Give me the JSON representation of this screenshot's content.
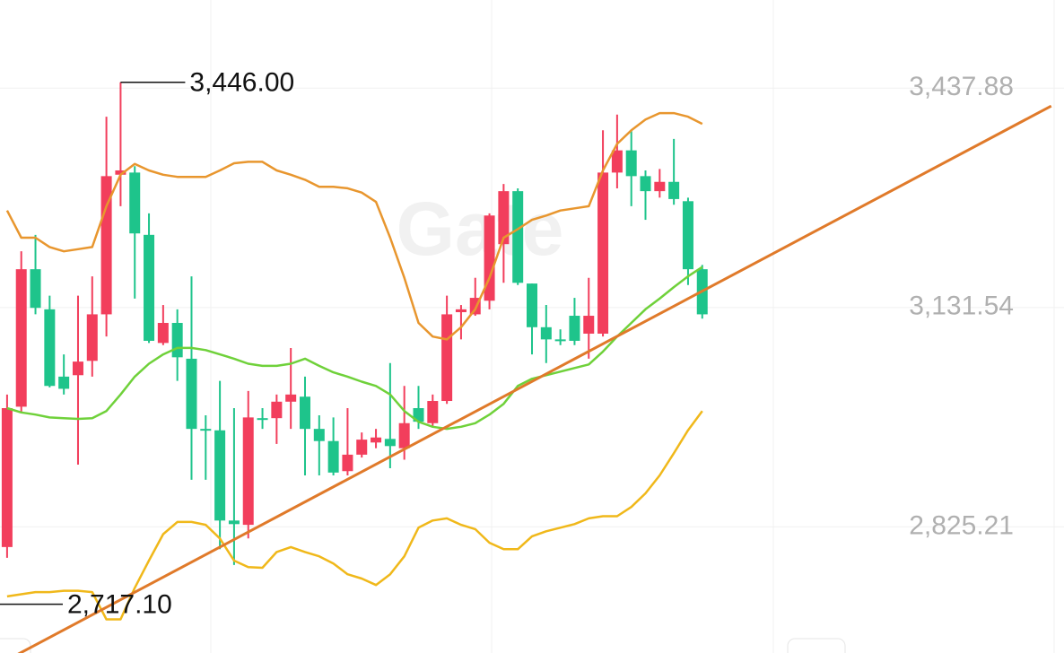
{
  "chart_data": {
    "type": "candlestick",
    "watermark": "Gate",
    "ylim": [
      2649,
      3561
    ],
    "xlim": [
      -0.5,
      74.5
    ],
    "yticks": [
      {
        "value": 3437.88,
        "label": "3,437.88"
      },
      {
        "value": 3131.54,
        "label": "3,131.54"
      },
      {
        "value": 2825.21,
        "label": "2,825.21"
      }
    ],
    "grid": true,
    "up_color": "#f23e5c",
    "down_color": "#1ec48b",
    "open": [
      2797,
      2993,
      3185,
      3129,
      3035,
      3037,
      3057,
      3122,
      3317,
      3320,
      3233,
      3082,
      3110,
      3060,
      2962,
      2960,
      2834,
      2828,
      2977,
      2977,
      3000,
      3007,
      2962,
      2945,
      2903,
      2926,
      2943,
      2948,
      2935,
      2991,
      2970,
      3001,
      3125,
      3122,
      3141,
      3220,
      3294,
      3165,
      3104,
      3087,
      3120,
      3095,
      3095,
      3320,
      3351,
      3315,
      3294,
      3307,
      3280,
      3185
    ],
    "high": [
      3010,
      3210,
      3233,
      3148,
      3066,
      3148,
      3175,
      3398,
      3446,
      3329,
      3263,
      3135,
      3129,
      3175,
      2981,
      3029,
      2991,
      3015,
      2991,
      3010,
      3075,
      3035,
      2981,
      2978,
      2991,
      2957,
      2962,
      3054,
      3022,
      3022,
      3010,
      3148,
      3135,
      3173,
      3263,
      3304,
      3298,
      3165,
      3135,
      3101,
      3145,
      3173,
      3379,
      3401,
      3379,
      3323,
      3325,
      3367,
      3285,
      3191
    ],
    "low": [
      2782,
      2985,
      3122,
      3020,
      3010,
      2912,
      3035,
      3091,
      3273,
      3144,
      3082,
      3079,
      3029,
      2891,
      2891,
      2794,
      2772,
      2809,
      2962,
      2941,
      2962,
      2897,
      2897,
      2897,
      2897,
      2922,
      2935,
      2907,
      2919,
      2962,
      2966,
      2997,
      3087,
      3120,
      3129,
      3166,
      3163,
      3066,
      3054,
      3079,
      3079,
      3060,
      3091,
      3298,
      3273,
      3254,
      3285,
      3275,
      3163,
      3116
    ],
    "close": [
      2991,
      3185,
      3131,
      3022,
      3018,
      3056,
      3122,
      3315,
      3323,
      3235,
      3085,
      3110,
      3062,
      2962,
      2960,
      2834,
      2829,
      2978,
      2975,
      3000,
      3010,
      2962,
      2945,
      2901,
      2926,
      2947,
      2950,
      2938,
      2970,
      2972,
      3001,
      3122,
      3129,
      3145,
      3260,
      3294,
      3166,
      3104,
      3087,
      3085,
      3085,
      3120,
      3320,
      3351,
      3315,
      3294,
      3307,
      3283,
      3185,
      3122
    ],
    "lines": [
      {
        "color": "#e8962e",
        "values": [
          3267,
          3229,
          3229,
          3216,
          3210,
          3213,
          3216,
          3273,
          3317,
          3332,
          3323,
          3317,
          3314,
          3314,
          3314,
          3323,
          3333,
          3335,
          3335,
          3323,
          3317,
          3310,
          3300,
          3300,
          3298,
          3292,
          3279,
          3229,
          3173,
          3110,
          3091,
          3087,
          3104,
          3129,
          3173,
          3229,
          3241,
          3254,
          3260,
          3267,
          3270,
          3273,
          3323,
          3360,
          3379,
          3394,
          3403,
          3403,
          3398,
          3388
        ]
      },
      {
        "color": "#6fd13a",
        "values": [
          2991,
          2985,
          2982,
          2978,
          2977,
          2976,
          2977,
          2987,
          3010,
          3035,
          3053,
          3066,
          3075,
          3075,
          3072,
          3066,
          3060,
          3053,
          3050,
          3050,
          3053,
          3060,
          3050,
          3041,
          3035,
          3028,
          3022,
          3010,
          2987,
          2972,
          2965,
          2962,
          2965,
          2970,
          2982,
          2997,
          3022,
          3032,
          3037,
          3042,
          3047,
          3052,
          3070,
          3091,
          3110,
          3129,
          3144,
          3160,
          3175,
          3188
        ]
      },
      {
        "color": "#f0b81a",
        "values": [
          2728,
          2731,
          2734,
          2734,
          2736,
          2736,
          2734,
          2696,
          2696,
          2740,
          2778,
          2815,
          2832,
          2832,
          2828,
          2809,
          2778,
          2769,
          2768,
          2790,
          2797,
          2790,
          2784,
          2774,
          2759,
          2753,
          2744,
          2759,
          2784,
          2824,
          2834,
          2837,
          2828,
          2822,
          2803,
          2794,
          2794,
          2812,
          2819,
          2824,
          2829,
          2837,
          2840,
          2840,
          2853,
          2872,
          2897,
          2928,
          2960,
          2987
        ]
      }
    ],
    "trendline": {
      "color": "#e07a2a",
      "x": [
        -0.5,
        73.6
      ],
      "values": [
        2634,
        3413
      ]
    },
    "annotations": [
      {
        "value": 3446,
        "label": "3,446.00"
      },
      {
        "value": 2717.1,
        "label": "2,717.10"
      }
    ]
  }
}
